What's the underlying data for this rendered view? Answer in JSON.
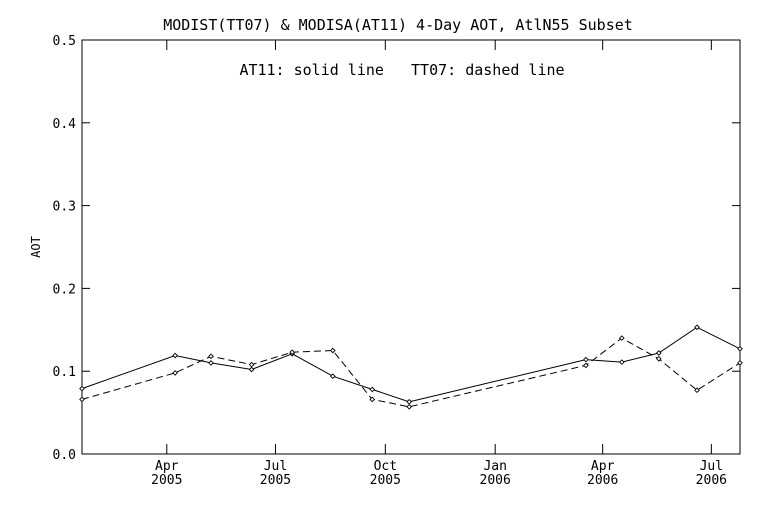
{
  "chart_data": {
    "type": "line",
    "title": "MODIST(TT07) & MODISA(AT11) 4-Day AOT, AtlN55 Subset",
    "annotation": "AT11: solid line   TT07: dashed line",
    "xlabel": "",
    "ylabel": "AOT",
    "xlim": [
      "2005-01-20",
      "2006-07-25"
    ],
    "ylim": [
      0.0,
      0.5
    ],
    "y_ticks": [
      0.0,
      0.1,
      0.2,
      0.3,
      0.4,
      0.5
    ],
    "y_tick_labels": [
      "0.0",
      "0.1",
      "0.2",
      "0.3",
      "0.4",
      "0.5"
    ],
    "x_ticks": [
      {
        "date": "2005-04-01",
        "month": "Apr",
        "year": "2005"
      },
      {
        "date": "2005-07-01",
        "month": "Jul",
        "year": "2005"
      },
      {
        "date": "2005-10-01",
        "month": "Oct",
        "year": "2005"
      },
      {
        "date": "2006-01-01",
        "month": "Jan",
        "year": "2006"
      },
      {
        "date": "2006-04-01",
        "month": "Apr",
        "year": "2006"
      },
      {
        "date": "2006-07-01",
        "month": "Jul",
        "year": "2006"
      }
    ],
    "grid": false,
    "series": [
      {
        "name": "AT11",
        "style": "solid",
        "x": [
          "2005-01-20",
          "2005-04-08",
          "2005-05-08",
          "2005-06-11",
          "2005-07-15",
          "2005-08-18",
          "2005-09-20",
          "2005-10-21",
          "2006-03-18",
          "2006-04-17",
          "2006-05-18",
          "2006-06-19",
          "2006-07-25"
        ],
        "y": [
          0.079,
          0.119,
          0.11,
          0.102,
          0.121,
          0.094,
          0.078,
          0.063,
          0.114,
          0.111,
          0.122,
          0.153,
          0.127
        ]
      },
      {
        "name": "TT07",
        "style": "dashed",
        "x": [
          "2005-01-20",
          "2005-04-08",
          "2005-05-08",
          "2005-06-11",
          "2005-07-15",
          "2005-08-18",
          "2005-09-20",
          "2005-10-21",
          "2006-03-18",
          "2006-04-17",
          "2006-05-18",
          "2006-06-19",
          "2006-07-25"
        ],
        "y": [
          0.066,
          0.098,
          0.118,
          0.108,
          0.123,
          0.125,
          0.066,
          0.057,
          0.107,
          0.14,
          0.115,
          0.077,
          0.11
        ]
      }
    ]
  }
}
